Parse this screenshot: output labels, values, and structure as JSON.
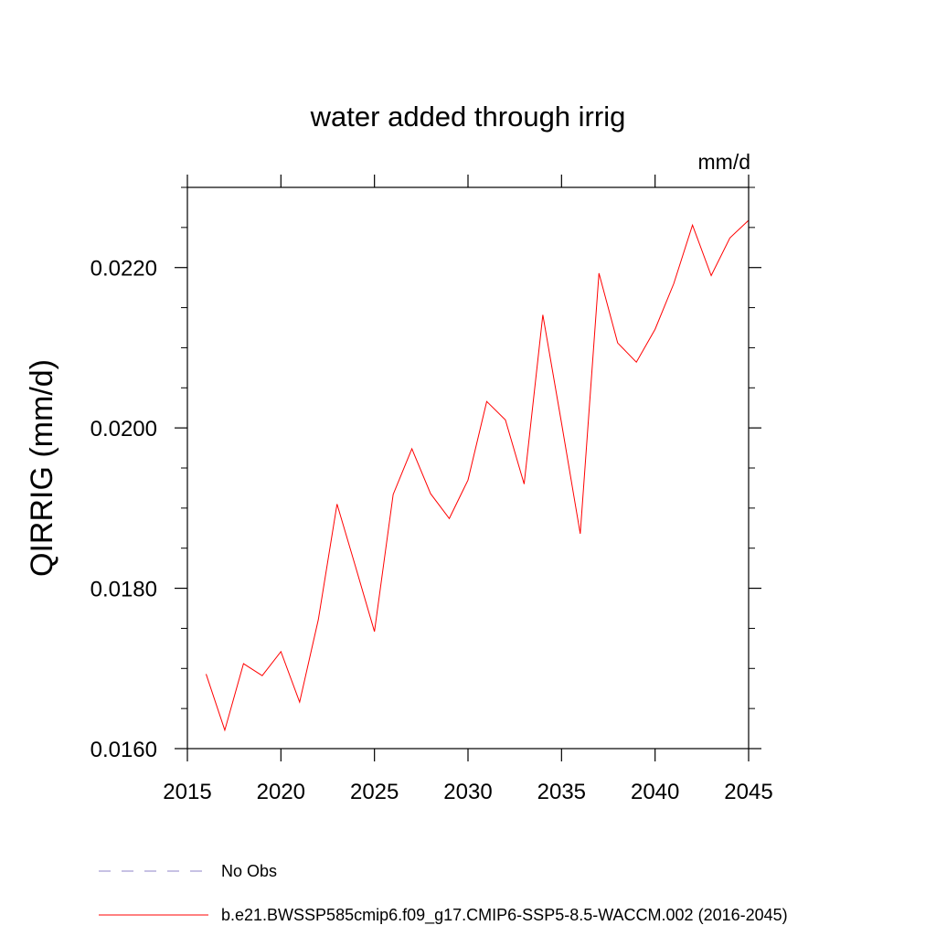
{
  "chart_data": {
    "type": "line",
    "title": "water added through irrig",
    "units_label": "mm/d",
    "ylabel": "QIRRIG  (mm/d)",
    "xlabel": "",
    "xlim": [
      2015,
      2045
    ],
    "ylim": [
      0.016,
      0.023
    ],
    "x_major_ticks": [
      2015,
      2020,
      2025,
      2030,
      2035,
      2040,
      2045
    ],
    "x_tick_labels": [
      "2015",
      "2020",
      "2025",
      "2030",
      "2035",
      "2040",
      "2045"
    ],
    "y_major_ticks": [
      0.016,
      0.018,
      0.02,
      0.022
    ],
    "y_tick_labels": [
      "0.0160",
      "0.0180",
      "0.0200",
      "0.0220"
    ],
    "y_minor_step": 0.0005,
    "x_minor_step": 1,
    "grid": false,
    "legend_placement": "bottom",
    "series": [
      {
        "name": "b.e21.BWSSP585cmip6.f09_g17.CMIP6-SSP5-8.5-WACCM.002 (2016-2045)",
        "color": "#ff0000",
        "x": [
          2016,
          2017,
          2018,
          2019,
          2020,
          2021,
          2022,
          2023,
          2024,
          2025,
          2026,
          2027,
          2028,
          2029,
          2030,
          2031,
          2032,
          2033,
          2034,
          2035,
          2036,
          2037,
          2038,
          2039,
          2040,
          2041,
          2042,
          2043,
          2044,
          2045
        ],
        "y": [
          0.01693,
          0.01623,
          0.01706,
          0.01691,
          0.01721,
          0.01658,
          0.01761,
          0.01905,
          0.01826,
          0.01746,
          0.01917,
          0.01974,
          0.01918,
          0.01887,
          0.01935,
          0.02033,
          0.0201,
          0.0193,
          0.02141,
          0.02006,
          0.01868,
          0.02193,
          0.02106,
          0.02082,
          0.02123,
          0.0218,
          0.02253,
          0.0219,
          0.02237,
          0.02259
        ]
      }
    ],
    "legend": [
      {
        "label": "No Obs",
        "color": "#8f86c9",
        "dash": true
      },
      {
        "label": "b.e21.BWSSP585cmip6.f09_g17.CMIP6-SSP5-8.5-WACCM.002 (2016-2045)",
        "color": "#ff0000",
        "dash": false
      }
    ]
  }
}
